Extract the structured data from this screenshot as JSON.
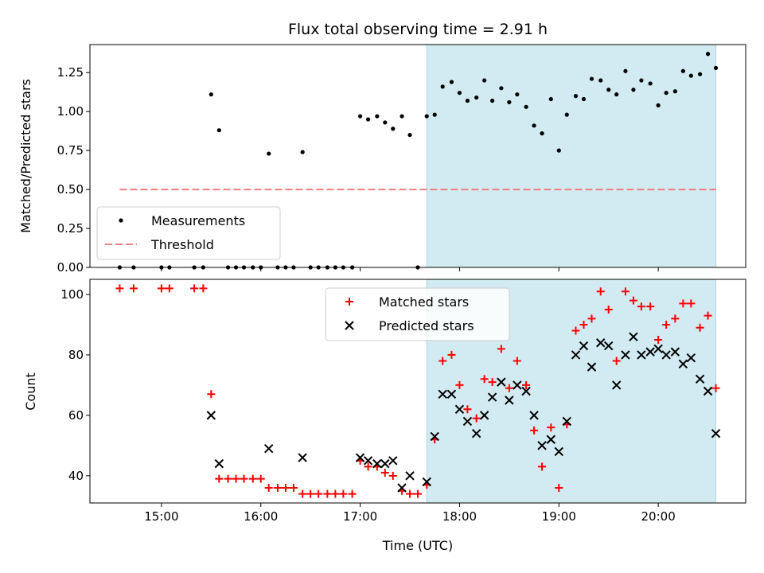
{
  "chart_data": {
    "title": "Flux total observing time = 2.91 h",
    "xlabel": "Time (UTC)",
    "x_tick_labels": [
      "15:00",
      "16:00",
      "17:00",
      "18:00",
      "19:00",
      "20:00"
    ],
    "x_ticks": [
      15,
      16,
      17,
      18,
      19,
      20
    ],
    "xlim": [
      14.28,
      20.88
    ],
    "shaded_span": [
      17.67,
      20.58
    ],
    "colors": {
      "measurements": "#000000",
      "threshold": "#f08080",
      "matched": "#ff0000",
      "predicted": "#000000",
      "span": "#add8e6"
    },
    "panels": [
      {
        "type": "scatter",
        "ylabel": "Matched/Predicted stars",
        "ylim": [
          0,
          1.43
        ],
        "y_ticks": [
          0,
          0.25,
          0.5,
          0.75,
          1.0,
          1.25
        ],
        "y_tick_labels": [
          "0.00",
          "0.25",
          "0.50",
          "0.75",
          "1.00",
          "1.25"
        ],
        "legend_position": "lower-left",
        "threshold": {
          "name": "Threshold",
          "value": 0.5,
          "x_range": [
            14.58,
            20.58
          ]
        },
        "series": [
          {
            "name": "Measurements",
            "x": [
              14.58,
              14.72,
              15.0,
              15.08,
              15.33,
              15.42,
              15.5,
              15.58,
              15.67,
              15.75,
              15.83,
              15.92,
              16.0,
              16.08,
              16.17,
              16.25,
              16.33,
              16.42,
              16.5,
              16.58,
              16.67,
              16.75,
              16.83,
              16.92,
              17.0,
              17.08,
              17.17,
              17.25,
              17.33,
              17.42,
              17.5,
              17.58,
              17.67,
              17.75,
              17.83,
              17.92,
              18.0,
              18.08,
              18.17,
              18.25,
              18.33,
              18.42,
              18.5,
              18.58,
              18.67,
              18.75,
              18.83,
              18.92,
              19.0,
              19.08,
              19.17,
              19.25,
              19.33,
              19.42,
              19.5,
              19.58,
              19.67,
              19.75,
              19.83,
              19.92,
              20.0,
              20.08,
              20.17,
              20.25,
              20.33,
              20.42,
              20.5,
              20.58
            ],
            "y": [
              0.0,
              0.0,
              0.0,
              0.0,
              0.0,
              0.0,
              1.11,
              0.88,
              0.0,
              0.0,
              0.0,
              0.0,
              0.0,
              0.73,
              0.0,
              0.0,
              0.0,
              0.74,
              0.0,
              0.0,
              0.0,
              0.0,
              0.0,
              0.0,
              0.97,
              0.95,
              0.97,
              0.93,
              0.89,
              0.97,
              0.85,
              0.0,
              0.97,
              0.98,
              1.16,
              1.19,
              1.12,
              1.07,
              1.09,
              1.2,
              1.07,
              1.15,
              1.06,
              1.11,
              1.03,
              0.91,
              0.86,
              1.08,
              0.75,
              0.98,
              1.1,
              1.08,
              1.21,
              1.2,
              1.14,
              1.11,
              1.26,
              1.14,
              1.2,
              1.18,
              1.04,
              1.12,
              1.13,
              1.26,
              1.23,
              1.24,
              1.37,
              1.28
            ]
          }
        ]
      },
      {
        "type": "scatter",
        "ylabel": "Count",
        "ylim": [
          31,
          105
        ],
        "y_ticks": [
          40,
          60,
          80,
          100
        ],
        "y_tick_labels": [
          "40",
          "60",
          "80",
          "100"
        ],
        "legend_position": "upper-center",
        "series": [
          {
            "name": "Matched stars",
            "marker": "plus",
            "x": [
              14.58,
              14.72,
              15.0,
              15.08,
              15.33,
              15.42,
              15.5,
              15.58,
              15.67,
              15.75,
              15.83,
              15.92,
              16.0,
              16.08,
              16.17,
              16.25,
              16.33,
              16.42,
              16.5,
              16.58,
              16.67,
              16.75,
              16.83,
              16.92,
              17.0,
              17.08,
              17.17,
              17.25,
              17.33,
              17.42,
              17.5,
              17.58,
              17.67,
              17.75,
              17.83,
              17.92,
              18.0,
              18.08,
              18.17,
              18.25,
              18.33,
              18.42,
              18.5,
              18.58,
              18.67,
              18.75,
              18.83,
              18.92,
              19.0,
              19.08,
              19.17,
              19.25,
              19.33,
              19.42,
              19.5,
              19.58,
              19.67,
              19.75,
              19.83,
              19.92,
              20.0,
              20.08,
              20.17,
              20.25,
              20.33,
              20.42,
              20.5,
              20.58
            ],
            "y": [
              102,
              102,
              102,
              102,
              102,
              102,
              67,
              39,
              39,
              39,
              39,
              39,
              39,
              36,
              36,
              36,
              36,
              34,
              34,
              34,
              34,
              34,
              34,
              34,
              45,
              43,
              43,
              41,
              40,
              35,
              34,
              34,
              37,
              52,
              78,
              80,
              70,
              62,
              59,
              72,
              71,
              82,
              69,
              78,
              70,
              55,
              43,
              56,
              36,
              57,
              88,
              90,
              92,
              101,
              95,
              78,
              101,
              98,
              96,
              96,
              85,
              90,
              92,
              97,
              97,
              89,
              93,
              69
            ]
          },
          {
            "name": "Predicted stars",
            "marker": "x",
            "x": [
              15.5,
              15.58,
              16.08,
              16.42,
              17.0,
              17.08,
              17.17,
              17.25,
              17.33,
              17.42,
              17.5,
              17.67,
              17.75,
              17.83,
              17.92,
              18.0,
              18.08,
              18.17,
              18.25,
              18.33,
              18.42,
              18.5,
              18.58,
              18.67,
              18.75,
              18.83,
              18.92,
              19.0,
              19.08,
              19.17,
              19.25,
              19.33,
              19.42,
              19.5,
              19.58,
              19.67,
              19.75,
              19.83,
              19.92,
              20.0,
              20.08,
              20.17,
              20.25,
              20.33,
              20.42,
              20.5,
              20.58
            ],
            "y": [
              60,
              44,
              49,
              46,
              46,
              45,
              44,
              44,
              45,
              36,
              40,
              38,
              53,
              67,
              67,
              62,
              58,
              54,
              60,
              66,
              71,
              65,
              70,
              68,
              60,
              50,
              52,
              48,
              58,
              80,
              83,
              76,
              84,
              83,
              70,
              80,
              86,
              80,
              81,
              82,
              80,
              81,
              77,
              79,
              72,
              68,
              54
            ]
          }
        ]
      }
    ]
  }
}
